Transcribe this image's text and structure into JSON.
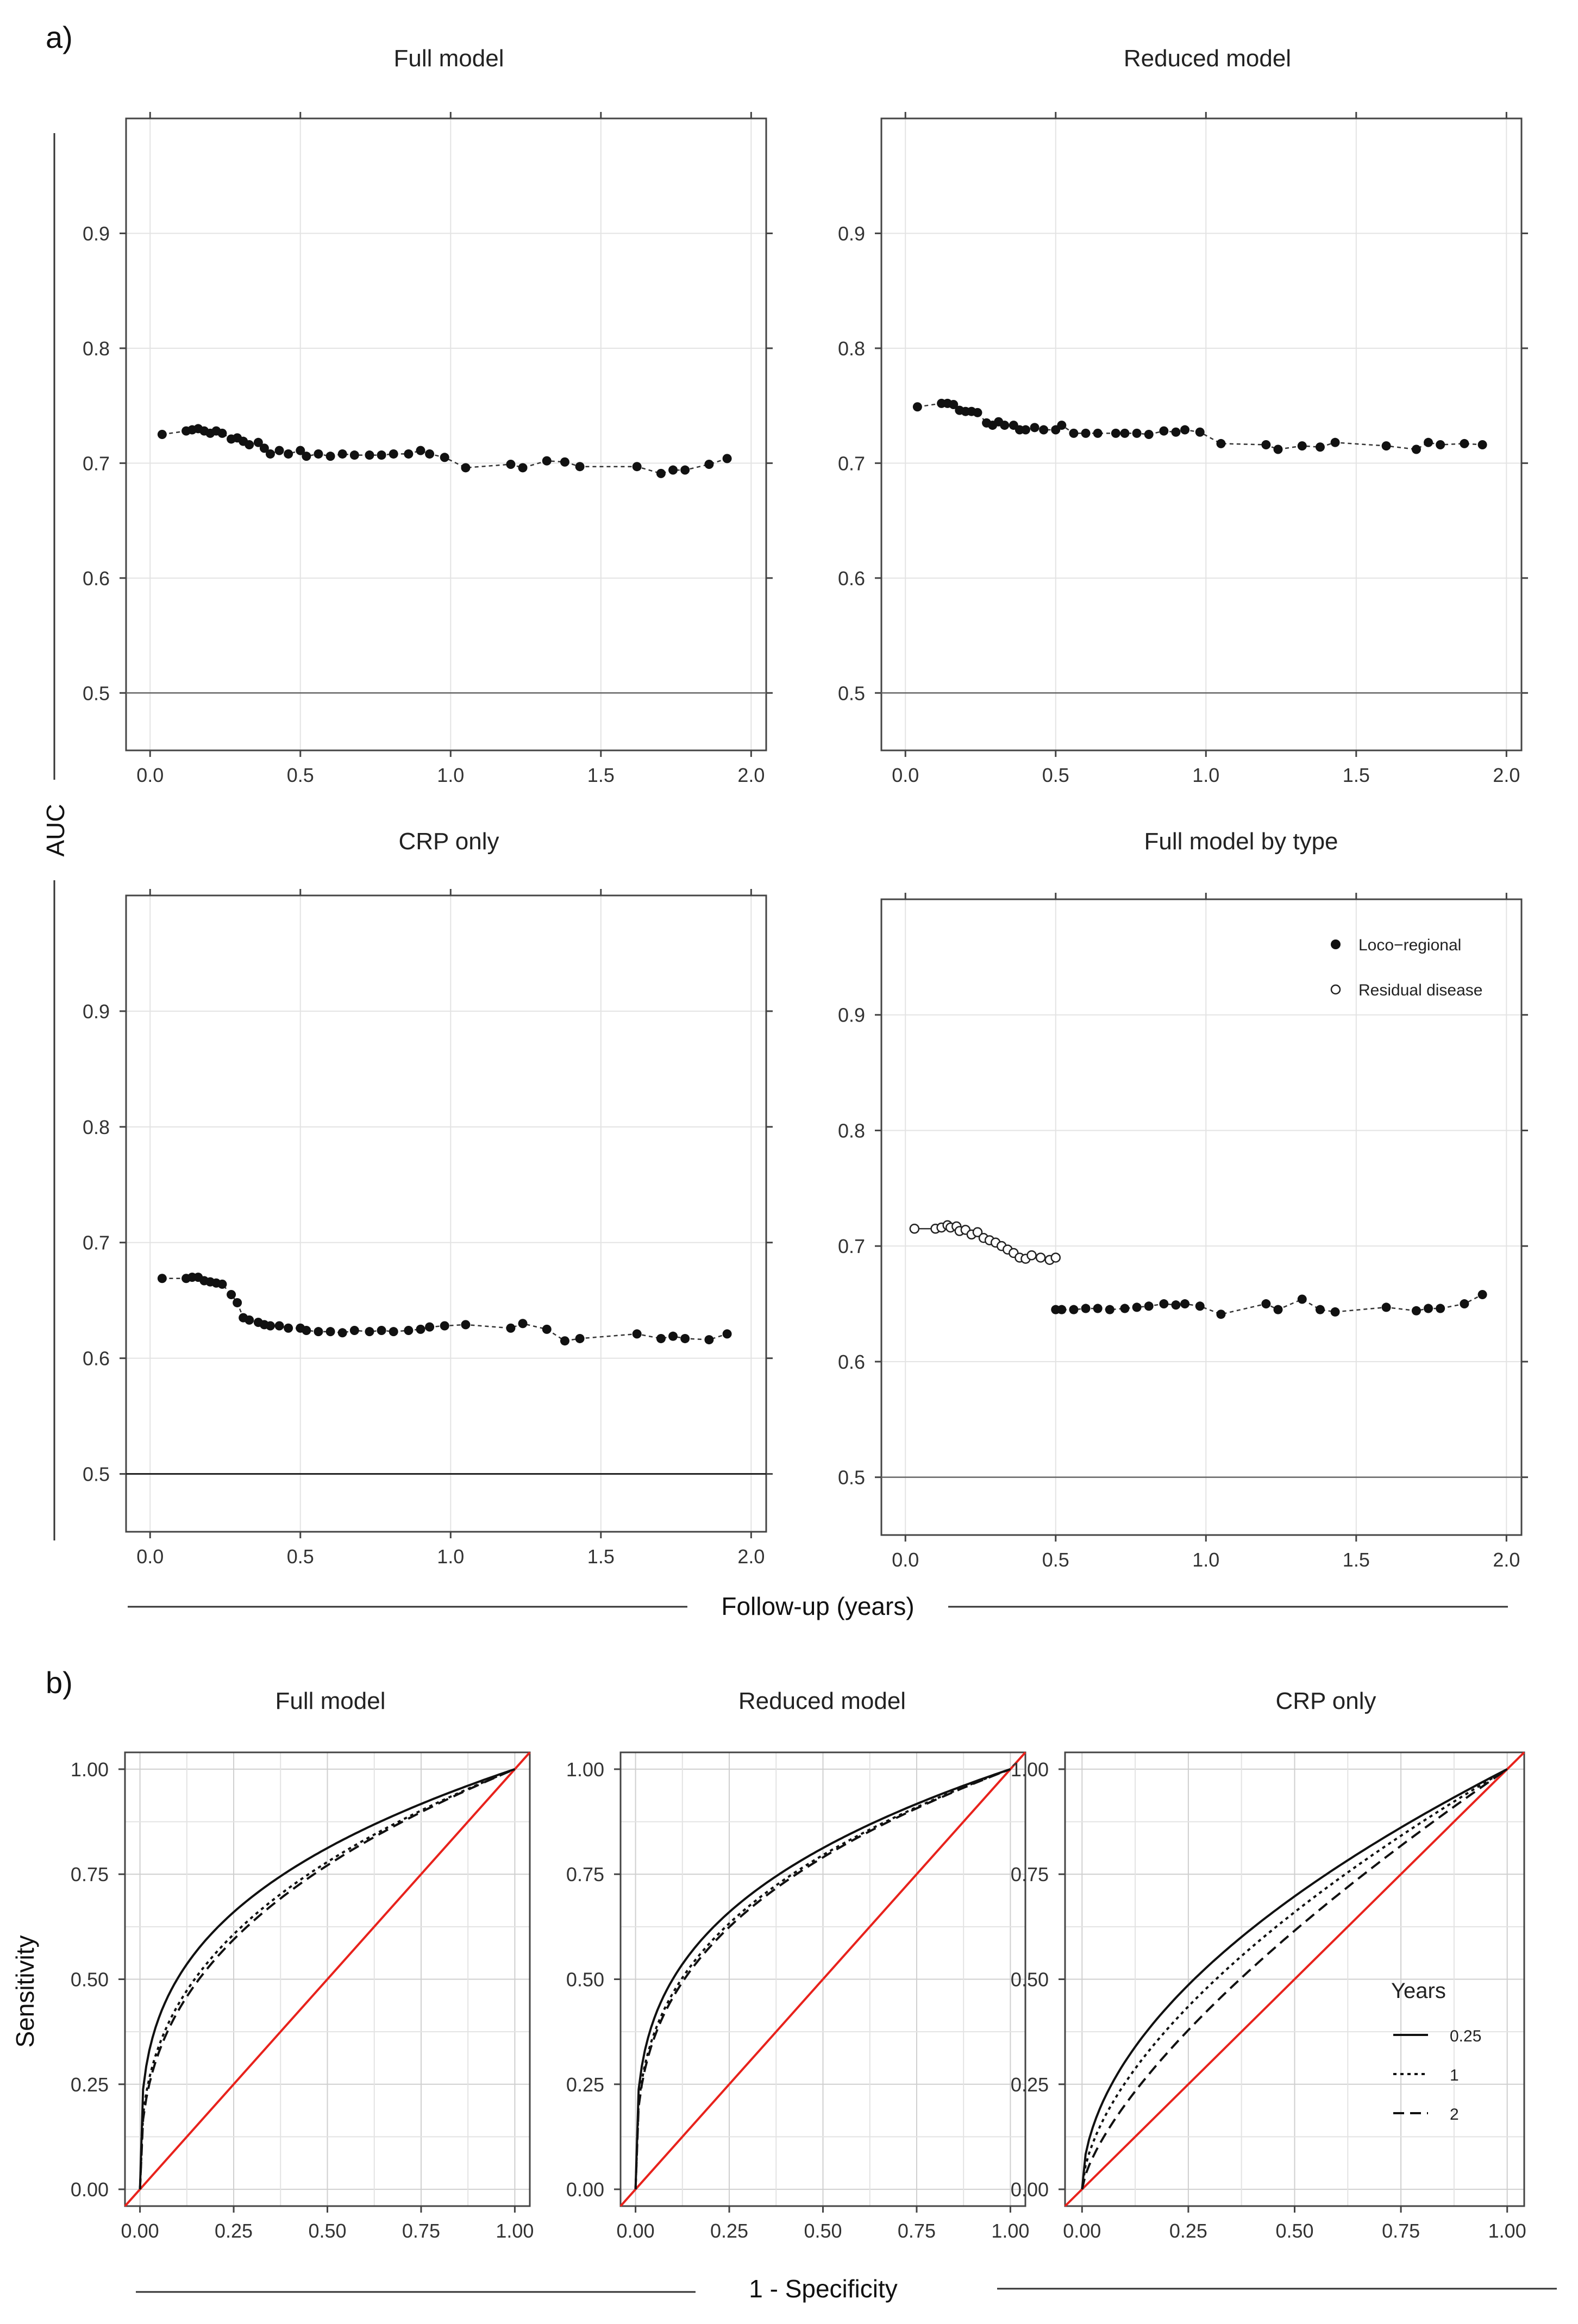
{
  "labels": {
    "part_a": "a)",
    "part_b": "b)",
    "auc_ylabel": "AUC",
    "followup_xlabel": "Follow-up (years)",
    "sens_ylabel": "Sensitivity",
    "spec_xlabel": "1 - Specificity"
  },
  "colors": {
    "points": "#111111",
    "diagonal": "#e8221c",
    "roc": "#111111",
    "grid": "#e3e3e3"
  },
  "chart_data": [
    {
      "id": "auc_full",
      "type": "line",
      "title": "Full model",
      "xlabel": "",
      "ylabel": "AUC",
      "xlim": [
        -0.08,
        2.05
      ],
      "ylim": [
        0.45,
        1.0
      ],
      "xticks": [
        "0.0",
        "0.5",
        "1.0",
        "1.5",
        "2.0"
      ],
      "yticks": [
        "0.5",
        "0.6",
        "0.7",
        "0.8",
        "0.9"
      ],
      "reference_line": 0.5,
      "series": [
        {
          "name": "AUC",
          "style": "filled",
          "x": [
            0.04,
            0.12,
            0.14,
            0.16,
            0.18,
            0.2,
            0.22,
            0.24,
            0.27,
            0.29,
            0.31,
            0.33,
            0.36,
            0.38,
            0.4,
            0.43,
            0.46,
            0.5,
            0.52,
            0.56,
            0.6,
            0.64,
            0.68,
            0.73,
            0.77,
            0.81,
            0.86,
            0.9,
            0.93,
            0.98,
            1.05,
            1.2,
            1.24,
            1.32,
            1.38,
            1.43,
            1.62,
            1.7,
            1.74,
            1.78,
            1.86,
            1.92
          ],
          "y": [
            0.725,
            0.728,
            0.729,
            0.73,
            0.728,
            0.726,
            0.728,
            0.726,
            0.721,
            0.722,
            0.719,
            0.716,
            0.718,
            0.713,
            0.708,
            0.711,
            0.708,
            0.711,
            0.706,
            0.708,
            0.706,
            0.708,
            0.707,
            0.707,
            0.707,
            0.708,
            0.708,
            0.711,
            0.708,
            0.705,
            0.696,
            0.699,
            0.696,
            0.702,
            0.701,
            0.697,
            0.697,
            0.691,
            0.694,
            0.694,
            0.699,
            0.704
          ]
        }
      ]
    },
    {
      "id": "auc_reduced",
      "type": "line",
      "title": "Reduced model",
      "xlabel": "",
      "ylabel": "AUC",
      "xlim": [
        -0.08,
        2.05
      ],
      "ylim": [
        0.45,
        1.0
      ],
      "xticks": [
        "0.0",
        "0.5",
        "1.0",
        "1.5",
        "2.0"
      ],
      "yticks": [
        "0.5",
        "0.6",
        "0.7",
        "0.8",
        "0.9"
      ],
      "reference_line": 0.5,
      "series": [
        {
          "name": "AUC",
          "style": "filled",
          "x": [
            0.04,
            0.12,
            0.14,
            0.16,
            0.18,
            0.2,
            0.22,
            0.24,
            0.27,
            0.29,
            0.31,
            0.33,
            0.36,
            0.38,
            0.4,
            0.43,
            0.46,
            0.5,
            0.52,
            0.56,
            0.6,
            0.64,
            0.7,
            0.73,
            0.77,
            0.81,
            0.86,
            0.9,
            0.93,
            0.98,
            1.05,
            1.2,
            1.24,
            1.32,
            1.38,
            1.43,
            1.6,
            1.7,
            1.74,
            1.78,
            1.86,
            1.92
          ],
          "y": [
            0.749,
            0.752,
            0.752,
            0.751,
            0.746,
            0.745,
            0.745,
            0.744,
            0.735,
            0.733,
            0.736,
            0.733,
            0.733,
            0.729,
            0.729,
            0.731,
            0.729,
            0.729,
            0.733,
            0.726,
            0.726,
            0.726,
            0.726,
            0.726,
            0.726,
            0.725,
            0.728,
            0.727,
            0.729,
            0.727,
            0.717,
            0.716,
            0.712,
            0.715,
            0.714,
            0.718,
            0.715,
            0.712,
            0.718,
            0.716,
            0.717,
            0.716
          ]
        }
      ]
    },
    {
      "id": "auc_crp",
      "type": "line",
      "title": "CRP only",
      "xlabel": "",
      "ylabel": "AUC",
      "xlim": [
        -0.08,
        2.05
      ],
      "ylim": [
        0.45,
        1.0
      ],
      "xticks": [
        "0.0",
        "0.5",
        "1.0",
        "1.5",
        "2.0"
      ],
      "yticks": [
        "0.5",
        "0.6",
        "0.7",
        "0.8",
        "0.9"
      ],
      "reference_line": 0.5,
      "series": [
        {
          "name": "AUC",
          "style": "filled",
          "x": [
            0.04,
            0.12,
            0.14,
            0.16,
            0.18,
            0.2,
            0.22,
            0.24,
            0.27,
            0.29,
            0.31,
            0.33,
            0.36,
            0.38,
            0.4,
            0.43,
            0.46,
            0.5,
            0.52,
            0.56,
            0.6,
            0.64,
            0.68,
            0.73,
            0.77,
            0.81,
            0.86,
            0.9,
            0.93,
            0.98,
            1.05,
            1.2,
            1.24,
            1.32,
            1.38,
            1.43,
            1.62,
            1.7,
            1.74,
            1.78,
            1.86,
            1.92
          ],
          "y": [
            0.669,
            0.669,
            0.67,
            0.67,
            0.667,
            0.666,
            0.665,
            0.664,
            0.655,
            0.648,
            0.635,
            0.633,
            0.631,
            0.629,
            0.628,
            0.628,
            0.626,
            0.626,
            0.624,
            0.623,
            0.623,
            0.622,
            0.624,
            0.623,
            0.624,
            0.623,
            0.624,
            0.625,
            0.627,
            0.628,
            0.629,
            0.626,
            0.63,
            0.625,
            0.615,
            0.617,
            0.621,
            0.617,
            0.619,
            0.617,
            0.616,
            0.621
          ]
        }
      ]
    },
    {
      "id": "auc_bytype",
      "type": "line",
      "title": "Full model by type",
      "xlabel": "",
      "ylabel": "AUC",
      "xlim": [
        -0.08,
        2.05
      ],
      "ylim": [
        0.45,
        1.0
      ],
      "xticks": [
        "0.0",
        "0.5",
        "1.0",
        "1.5",
        "2.0"
      ],
      "yticks": [
        "0.5",
        "0.6",
        "0.7",
        "0.8",
        "0.9"
      ],
      "reference_line": 0.5,
      "legend": {
        "position": "top-right",
        "entries": [
          "Loco−regional",
          "Residual disease"
        ]
      },
      "series": [
        {
          "name": "Loco−regional",
          "style": "filled",
          "x": [
            0.5,
            0.52,
            0.56,
            0.6,
            0.64,
            0.68,
            0.73,
            0.77,
            0.81,
            0.86,
            0.9,
            0.93,
            0.98,
            1.05,
            1.2,
            1.24,
            1.32,
            1.38,
            1.43,
            1.6,
            1.7,
            1.74,
            1.78,
            1.86,
            1.92
          ],
          "y": [
            0.645,
            0.645,
            0.645,
            0.646,
            0.646,
            0.645,
            0.646,
            0.647,
            0.648,
            0.65,
            0.649,
            0.65,
            0.648,
            0.641,
            0.65,
            0.645,
            0.654,
            0.645,
            0.643,
            0.647,
            0.644,
            0.646,
            0.646,
            0.65,
            0.658
          ]
        },
        {
          "name": "Residual disease",
          "style": "open",
          "x": [
            0.03,
            0.1,
            0.12,
            0.14,
            0.15,
            0.17,
            0.18,
            0.2,
            0.22,
            0.24,
            0.26,
            0.28,
            0.3,
            0.32,
            0.34,
            0.36,
            0.38,
            0.4,
            0.42,
            0.45,
            0.48,
            0.5
          ],
          "y": [
            0.715,
            0.715,
            0.716,
            0.718,
            0.716,
            0.717,
            0.713,
            0.714,
            0.71,
            0.712,
            0.707,
            0.705,
            0.703,
            0.7,
            0.697,
            0.694,
            0.69,
            0.689,
            0.692,
            0.69,
            0.688,
            0.69
          ]
        }
      ]
    },
    {
      "id": "roc_full",
      "type": "line",
      "title": "Full model",
      "xlabel": "1 - Specificity",
      "ylabel": "Sensitivity",
      "xlim": [
        -0.04,
        1.04
      ],
      "ylim": [
        -0.04,
        1.04
      ],
      "xticks": [
        "0.00",
        "0.25",
        "0.50",
        "0.75",
        "1.00"
      ],
      "yticks": [
        "0.00",
        "0.25",
        "0.50",
        "0.75",
        "1.00"
      ],
      "diagonal": true,
      "series": [
        {
          "name": "0.25",
          "style": "solid",
          "power": 0.3
        },
        {
          "name": "1",
          "style": "dotted",
          "power": 0.36
        },
        {
          "name": "2",
          "style": "dashed",
          "power": 0.375
        }
      ]
    },
    {
      "id": "roc_reduced",
      "type": "line",
      "title": "Reduced model",
      "xlabel": "1 - Specificity",
      "ylabel": "Sensitivity",
      "xlim": [
        -0.04,
        1.04
      ],
      "ylim": [
        -0.04,
        1.04
      ],
      "xticks": [
        "0.00",
        "0.25",
        "0.50",
        "0.75",
        "1.00"
      ],
      "yticks": [
        "0.00",
        "0.25",
        "0.50",
        "0.75",
        "1.00"
      ],
      "diagonal": true,
      "series": [
        {
          "name": "0.25",
          "style": "solid",
          "power": 0.3
        },
        {
          "name": "1",
          "style": "dotted",
          "power": 0.33
        },
        {
          "name": "2",
          "style": "dashed",
          "power": 0.34
        }
      ]
    },
    {
      "id": "roc_crp",
      "type": "line",
      "title": "CRP only",
      "xlabel": "1 - Specificity",
      "ylabel": "Sensitivity",
      "xlim": [
        -0.04,
        1.04
      ],
      "ylim": [
        -0.04,
        1.04
      ],
      "xticks": [
        "0.00",
        "0.25",
        "0.50",
        "0.75",
        "1.00"
      ],
      "yticks": [
        "0.00",
        "0.25",
        "0.50",
        "0.75",
        "1.00"
      ],
      "diagonal": true,
      "legend": {
        "position": "bottom-right",
        "title": "Years",
        "entries": [
          "0.25",
          "1",
          "2"
        ]
      },
      "series": [
        {
          "name": "0.25",
          "style": "solid",
          "power": 0.52
        },
        {
          "name": "1",
          "style": "dotted",
          "power": 0.6
        },
        {
          "name": "2",
          "style": "dashed",
          "power": 0.7
        }
      ]
    }
  ]
}
